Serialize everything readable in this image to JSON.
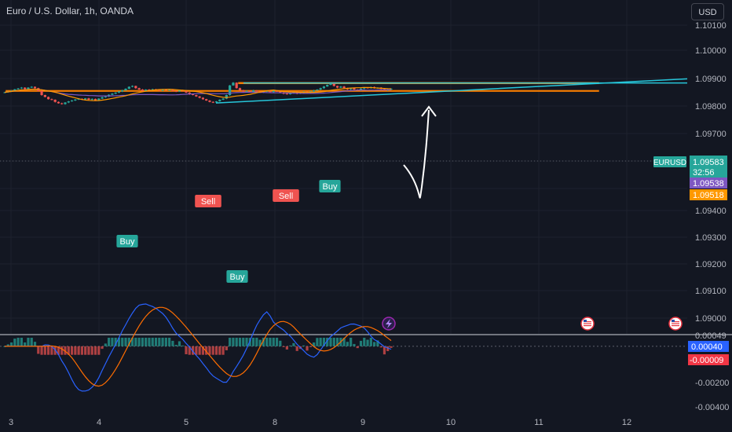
{
  "header": {
    "title": "Euro / U.S. Dollar, 1h, OANDA",
    "currency_label": "USD"
  },
  "colors": {
    "bg": "#131722",
    "up": "#26a69a",
    "down": "#ef5350",
    "accent_line": "#26c6da",
    "zone": "#f57c00",
    "ma_purple": "#7e57c2",
    "ma_orange": "#ff9800",
    "grid": "#1e222d",
    "text": "#b2b5be"
  },
  "chart_data": [
    {
      "type": "candlestick",
      "symbol": "EURUSD",
      "x_labels": [
        "3",
        "4",
        "5",
        "8",
        "9",
        "10",
        "11",
        "12"
      ],
      "y_ticks": [
        "1.10100",
        "1.10000",
        "1.09900",
        "1.09800",
        "1.09700",
        "1.09400",
        "1.09300",
        "1.09200",
        "1.09100",
        "1.09000"
      ],
      "ylim": [
        1.0895,
        1.1012
      ],
      "price_labels": {
        "symbol": "EURUSD",
        "last": "1.09583",
        "countdown": "32:56",
        "ma_purple": "1.09538",
        "ma_orange": "1.09518"
      },
      "resistance_zone": [
        1.0977,
        1.098
      ],
      "support_zone": [
        1.0949,
        1.0951
      ],
      "horizontal_line": 1.0979,
      "trendline": [
        [
          0.0,
          1.0906
        ],
        [
          1.0,
          1.0994
        ]
      ],
      "signals": [
        "Buy",
        "Buy",
        "Sell",
        "Sell",
        "Buy"
      ],
      "arrow": "up"
    },
    {
      "type": "bar",
      "name": "oscillator",
      "y_ticks": [
        "0.00049",
        "-0.00200",
        "-0.00400"
      ],
      "labels": {
        "macd": "0.00040",
        "signal": "-0.00009"
      },
      "ylim": [
        -0.0047,
        0.0009
      ]
    }
  ]
}
